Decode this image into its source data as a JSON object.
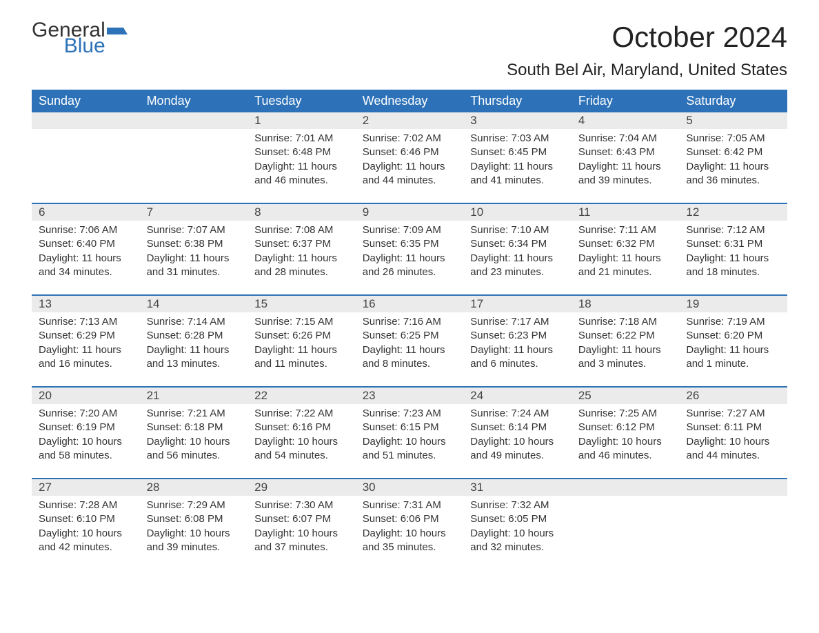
{
  "logo": {
    "line1": "General",
    "line2": "Blue",
    "flag_color": "#2d72b8"
  },
  "title": "October 2024",
  "location": "South Bel Air, Maryland, United States",
  "header_bg": "#2d72b8",
  "header_fg": "#ffffff",
  "daynum_bg": "#ebebeb",
  "border_color": "#2d72b8",
  "text_color": "#333333",
  "day_headers": [
    "Sunday",
    "Monday",
    "Tuesday",
    "Wednesday",
    "Thursday",
    "Friday",
    "Saturday"
  ],
  "weeks": [
    [
      null,
      null,
      {
        "n": "1",
        "sunrise": "Sunrise: 7:01 AM",
        "sunset": "Sunset: 6:48 PM",
        "day1": "Daylight: 11 hours",
        "day2": "and 46 minutes."
      },
      {
        "n": "2",
        "sunrise": "Sunrise: 7:02 AM",
        "sunset": "Sunset: 6:46 PM",
        "day1": "Daylight: 11 hours",
        "day2": "and 44 minutes."
      },
      {
        "n": "3",
        "sunrise": "Sunrise: 7:03 AM",
        "sunset": "Sunset: 6:45 PM",
        "day1": "Daylight: 11 hours",
        "day2": "and 41 minutes."
      },
      {
        "n": "4",
        "sunrise": "Sunrise: 7:04 AM",
        "sunset": "Sunset: 6:43 PM",
        "day1": "Daylight: 11 hours",
        "day2": "and 39 minutes."
      },
      {
        "n": "5",
        "sunrise": "Sunrise: 7:05 AM",
        "sunset": "Sunset: 6:42 PM",
        "day1": "Daylight: 11 hours",
        "day2": "and 36 minutes."
      }
    ],
    [
      {
        "n": "6",
        "sunrise": "Sunrise: 7:06 AM",
        "sunset": "Sunset: 6:40 PM",
        "day1": "Daylight: 11 hours",
        "day2": "and 34 minutes."
      },
      {
        "n": "7",
        "sunrise": "Sunrise: 7:07 AM",
        "sunset": "Sunset: 6:38 PM",
        "day1": "Daylight: 11 hours",
        "day2": "and 31 minutes."
      },
      {
        "n": "8",
        "sunrise": "Sunrise: 7:08 AM",
        "sunset": "Sunset: 6:37 PM",
        "day1": "Daylight: 11 hours",
        "day2": "and 28 minutes."
      },
      {
        "n": "9",
        "sunrise": "Sunrise: 7:09 AM",
        "sunset": "Sunset: 6:35 PM",
        "day1": "Daylight: 11 hours",
        "day2": "and 26 minutes."
      },
      {
        "n": "10",
        "sunrise": "Sunrise: 7:10 AM",
        "sunset": "Sunset: 6:34 PM",
        "day1": "Daylight: 11 hours",
        "day2": "and 23 minutes."
      },
      {
        "n": "11",
        "sunrise": "Sunrise: 7:11 AM",
        "sunset": "Sunset: 6:32 PM",
        "day1": "Daylight: 11 hours",
        "day2": "and 21 minutes."
      },
      {
        "n": "12",
        "sunrise": "Sunrise: 7:12 AM",
        "sunset": "Sunset: 6:31 PM",
        "day1": "Daylight: 11 hours",
        "day2": "and 18 minutes."
      }
    ],
    [
      {
        "n": "13",
        "sunrise": "Sunrise: 7:13 AM",
        "sunset": "Sunset: 6:29 PM",
        "day1": "Daylight: 11 hours",
        "day2": "and 16 minutes."
      },
      {
        "n": "14",
        "sunrise": "Sunrise: 7:14 AM",
        "sunset": "Sunset: 6:28 PM",
        "day1": "Daylight: 11 hours",
        "day2": "and 13 minutes."
      },
      {
        "n": "15",
        "sunrise": "Sunrise: 7:15 AM",
        "sunset": "Sunset: 6:26 PM",
        "day1": "Daylight: 11 hours",
        "day2": "and 11 minutes."
      },
      {
        "n": "16",
        "sunrise": "Sunrise: 7:16 AM",
        "sunset": "Sunset: 6:25 PM",
        "day1": "Daylight: 11 hours",
        "day2": "and 8 minutes."
      },
      {
        "n": "17",
        "sunrise": "Sunrise: 7:17 AM",
        "sunset": "Sunset: 6:23 PM",
        "day1": "Daylight: 11 hours",
        "day2": "and 6 minutes."
      },
      {
        "n": "18",
        "sunrise": "Sunrise: 7:18 AM",
        "sunset": "Sunset: 6:22 PM",
        "day1": "Daylight: 11 hours",
        "day2": "and 3 minutes."
      },
      {
        "n": "19",
        "sunrise": "Sunrise: 7:19 AM",
        "sunset": "Sunset: 6:20 PM",
        "day1": "Daylight: 11 hours",
        "day2": "and 1 minute."
      }
    ],
    [
      {
        "n": "20",
        "sunrise": "Sunrise: 7:20 AM",
        "sunset": "Sunset: 6:19 PM",
        "day1": "Daylight: 10 hours",
        "day2": "and 58 minutes."
      },
      {
        "n": "21",
        "sunrise": "Sunrise: 7:21 AM",
        "sunset": "Sunset: 6:18 PM",
        "day1": "Daylight: 10 hours",
        "day2": "and 56 minutes."
      },
      {
        "n": "22",
        "sunrise": "Sunrise: 7:22 AM",
        "sunset": "Sunset: 6:16 PM",
        "day1": "Daylight: 10 hours",
        "day2": "and 54 minutes."
      },
      {
        "n": "23",
        "sunrise": "Sunrise: 7:23 AM",
        "sunset": "Sunset: 6:15 PM",
        "day1": "Daylight: 10 hours",
        "day2": "and 51 minutes."
      },
      {
        "n": "24",
        "sunrise": "Sunrise: 7:24 AM",
        "sunset": "Sunset: 6:14 PM",
        "day1": "Daylight: 10 hours",
        "day2": "and 49 minutes."
      },
      {
        "n": "25",
        "sunrise": "Sunrise: 7:25 AM",
        "sunset": "Sunset: 6:12 PM",
        "day1": "Daylight: 10 hours",
        "day2": "and 46 minutes."
      },
      {
        "n": "26",
        "sunrise": "Sunrise: 7:27 AM",
        "sunset": "Sunset: 6:11 PM",
        "day1": "Daylight: 10 hours",
        "day2": "and 44 minutes."
      }
    ],
    [
      {
        "n": "27",
        "sunrise": "Sunrise: 7:28 AM",
        "sunset": "Sunset: 6:10 PM",
        "day1": "Daylight: 10 hours",
        "day2": "and 42 minutes."
      },
      {
        "n": "28",
        "sunrise": "Sunrise: 7:29 AM",
        "sunset": "Sunset: 6:08 PM",
        "day1": "Daylight: 10 hours",
        "day2": "and 39 minutes."
      },
      {
        "n": "29",
        "sunrise": "Sunrise: 7:30 AM",
        "sunset": "Sunset: 6:07 PM",
        "day1": "Daylight: 10 hours",
        "day2": "and 37 minutes."
      },
      {
        "n": "30",
        "sunrise": "Sunrise: 7:31 AM",
        "sunset": "Sunset: 6:06 PM",
        "day1": "Daylight: 10 hours",
        "day2": "and 35 minutes."
      },
      {
        "n": "31",
        "sunrise": "Sunrise: 7:32 AM",
        "sunset": "Sunset: 6:05 PM",
        "day1": "Daylight: 10 hours",
        "day2": "and 32 minutes."
      },
      null,
      null
    ]
  ]
}
